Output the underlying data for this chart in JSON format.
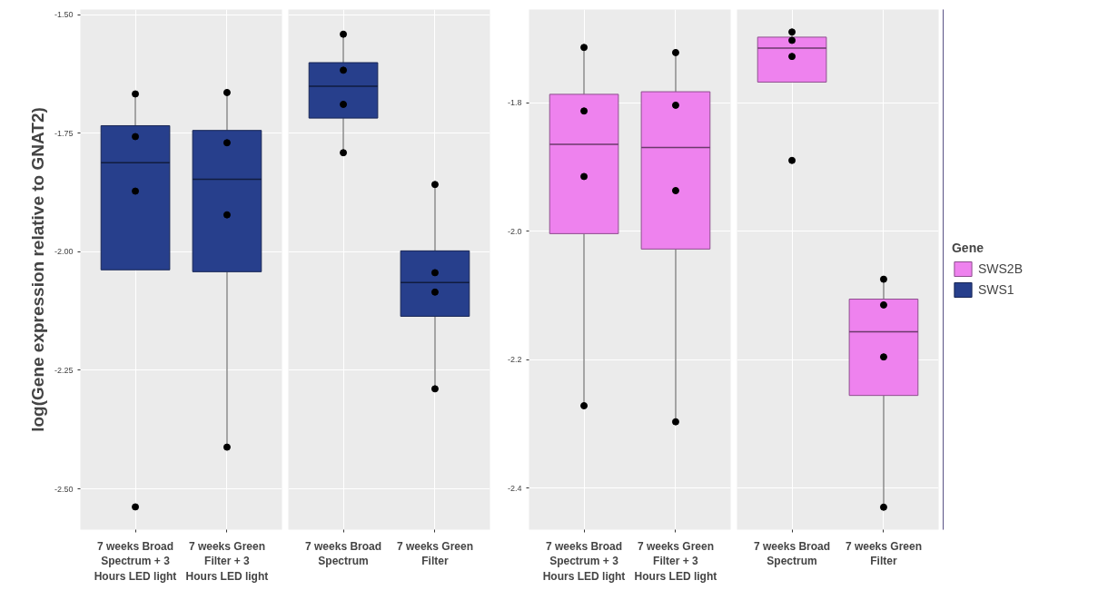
{
  "chart_data": [
    {
      "type": "box",
      "ylabel": "log(Gene expression relative to GNAT2)",
      "categories": [
        "7 weeks Broad\nSpectrum + 3\nHours LED light",
        "7 weeks Green\nFilter + 3\nHours LED light"
      ],
      "ylim": [
        -2.586,
        -1.489
      ],
      "yticks": [
        {
          "value": -1.5,
          "label": "-1.50"
        },
        -1.75,
        {
          "value": -2.0,
          "label": "-2.00"
        },
        -2.25,
        {
          "value": -2.5,
          "label": "-2.50"
        }
      ],
      "grid": true,
      "series": [
        {
          "name": "SWS1",
          "color": "#273f8c",
          "boxes": [
            {
              "low": -2.038,
              "q1": -2.038,
              "median": -1.812,
              "q3": -1.734,
              "high": -1.667
            },
            {
              "low": -2.412,
              "q1": -2.042,
              "median": -1.847,
              "q3": -1.744,
              "high": -1.664
            }
          ]
        },
        {
          "type": "scatter",
          "color": "#000000",
          "x": [
            "7 weeks Broad\nSpectrum + 3\nHours LED light",
            "7 weeks Broad\nSpectrum + 3\nHours LED light",
            "7 weeks Broad\nSpectrum + 3\nHours LED light",
            "7 weeks Broad\nSpectrum + 3\nHours LED light",
            "7 weeks Green\nFilter + 3\nHours LED light",
            "7 weeks Green\nFilter + 3\nHours LED light",
            "7 weeks Green\nFilter + 3\nHours LED light",
            "7 weeks Green\nFilter + 3\nHours LED light"
          ],
          "values": [
            -1.667,
            -1.757,
            -1.872,
            -2.538,
            -1.664,
            -1.77,
            -1.922,
            -2.412
          ]
        }
      ]
    },
    {
      "type": "box",
      "categories": [
        "7 weeks Broad\nSpectrum",
        "7 weeks Green\nFilter"
      ],
      "ylim": [
        -2.586,
        -1.489
      ],
      "yticks": [
        -1.5,
        -1.75,
        -2.0,
        -2.25,
        -2.5
      ],
      "grid": true,
      "tick_labels": "x",
      "series": [
        {
          "color": "#273f8c",
          "boxes": [
            {
              "low": -1.791,
              "q1": -1.718,
              "median": -1.651,
              "q3": -1.601,
              "high": -1.541
            },
            {
              "low": -2.289,
              "q1": -2.136,
              "median": -2.065,
              "q3": -1.998,
              "high": -1.858
            }
          ]
        },
        {
          "type": "scatter",
          "color": "#000000",
          "x": [
            "7 weeks Broad\nSpectrum",
            "7 weeks Broad\nSpectrum",
            "7 weeks Broad\nSpectrum",
            "7 weeks Broad\nSpectrum",
            "7 weeks Green\nFilter",
            "7 weeks Green\nFilter",
            "7 weeks Green\nFilter",
            "7 weeks Green\nFilter"
          ],
          "values": [
            -1.541,
            -1.617,
            -1.689,
            -1.791,
            -1.858,
            -2.044,
            -2.085,
            -2.289
          ]
        }
      ]
    },
    {
      "type": "box",
      "categories": [
        "7 weeks Broad\nSpectrum + 3\nHours LED light",
        "7 weeks Green\nFilter + 3\nHours LED light"
      ],
      "ylim": [
        -2.465,
        -1.655
      ],
      "yticks": [
        -1.8,
        {
          "value": -2.0,
          "label": "-2.0"
        },
        -2.2,
        -2.4
      ],
      "grid": true,
      "series": [
        {
          "color": "#ee82ee",
          "boxes": [
            {
              "low": -2.272,
              "q1": -2.004,
              "median": -1.865,
              "q3": -1.787,
              "high": -1.714
            },
            {
              "low": -2.297,
              "q1": -2.028,
              "median": -1.87,
              "q3": -1.783,
              "high": -1.722
            }
          ]
        },
        {
          "type": "scatter",
          "color": "#000000",
          "x": [
            "7 weeks Broad\nSpectrum + 3\nHours LED light",
            "7 weeks Broad\nSpectrum + 3\nHours LED light",
            "7 weeks Broad\nSpectrum + 3\nHours LED light",
            "7 weeks Broad\nSpectrum + 3\nHours LED light",
            "7 weeks Green\nFilter + 3\nHours LED light",
            "7 weeks Green\nFilter + 3\nHours LED light",
            "7 weeks Green\nFilter + 3\nHours LED light",
            "7 weeks Green\nFilter + 3\nHours LED light"
          ],
          "values": [
            -1.714,
            -1.813,
            -1.915,
            -2.272,
            -1.722,
            -1.804,
            -1.937,
            -2.297
          ]
        }
      ]
    },
    {
      "type": "box",
      "categories": [
        "7 weeks Broad\nSpectrum",
        "7 weeks Green\nFilter"
      ],
      "ylim": [
        -2.465,
        -1.655
      ],
      "yticks": [
        -1.8,
        -2.0,
        -2.2,
        -2.4
      ],
      "grid": true,
      "tick_labels": "x",
      "legend": "right",
      "legend_title": "Gene",
      "series": [
        {
          "name": "SWS2B",
          "color": "#ee82ee",
          "boxes": [
            {
              "low": -1.768,
              "q1": -1.768,
              "median": -1.715,
              "q3": -1.698,
              "high": -1.69
            },
            {
              "low": -2.43,
              "q1": -2.256,
              "median": -2.157,
              "q3": -2.106,
              "high": -2.075
            }
          ]
        },
        {
          "type": "scatter",
          "color": "#000000",
          "x": [
            "7 weeks Broad\nSpectrum",
            "7 weeks Broad\nSpectrum",
            "7 weeks Broad\nSpectrum",
            "7 weeks Broad\nSpectrum",
            "7 weeks Green\nFilter",
            "7 weeks Green\nFilter",
            "7 weeks Green\nFilter",
            "7 weeks Green\nFilter"
          ],
          "values": [
            -1.69,
            -1.703,
            -1.728,
            -1.89,
            -2.075,
            -2.115,
            -2.196,
            -2.43
          ]
        }
      ]
    }
  ]
}
